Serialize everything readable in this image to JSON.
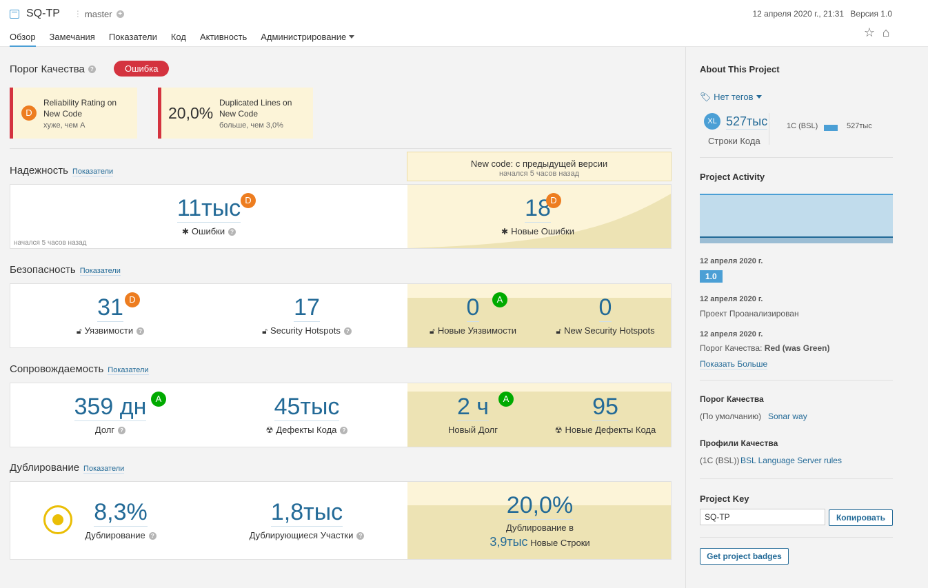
{
  "header": {
    "project_name": "SQ-TP",
    "branch": "master",
    "date": "12 апреля 2020 г., 21:31",
    "version": "Версия 1.0",
    "nav": [
      "Обзор",
      "Замечания",
      "Показатели",
      "Код",
      "Активность",
      "Администрирование"
    ]
  },
  "quality_gate": {
    "title": "Порог Качества",
    "status": "Ошибка",
    "conditions": [
      {
        "rating": "D",
        "label": "Reliability Rating on New Code",
        "detail": "хуже, чем A"
      },
      {
        "value": "20,0%",
        "label": "Duplicated Lines on New Code",
        "detail": "больше, чем 3,0%"
      }
    ]
  },
  "new_code": {
    "title": "New code: с предыдущей версии",
    "subtitle": "начался 5 часов назад"
  },
  "metrics_link": "Показатели",
  "reliability": {
    "title": "Надежность",
    "bugs": "11тыс",
    "bugs_rating": "D",
    "bugs_label": "Ошибки",
    "footer": "начался 5 часов назад",
    "new_bugs": "18",
    "new_bugs_rating": "D",
    "new_bugs_label": "Новые Ошибки"
  },
  "security": {
    "title": "Безопасность",
    "vuln": "31",
    "vuln_rating": "D",
    "vuln_label": "Уязвимости",
    "hotspots": "17",
    "hotspots_label": "Security Hotspots",
    "new_vuln": "0",
    "new_vuln_rating": "A",
    "new_vuln_label": "Новые Уязвимости",
    "new_hotspots": "0",
    "new_hotspots_label": "New Security Hotspots"
  },
  "maintainability": {
    "title": "Сопровождаемость",
    "debt": "359 дн",
    "debt_rating": "A",
    "debt_label": "Долг",
    "smells": "45тыс",
    "smells_label": "Дефекты Кода",
    "new_debt": "2 ч",
    "new_debt_rating": "A",
    "new_debt_label": "Новый Долг",
    "new_smells": "95",
    "new_smells_label": "Новые Дефекты Кода"
  },
  "duplication": {
    "title": "Дублирование",
    "dup": "8,3%",
    "dup_label": "Дублирование",
    "blocks": "1,8тыс",
    "blocks_label": "Дублирующиеся Участки",
    "new_dup": "20,0%",
    "new_dup_label": "Дублирование в",
    "new_lines": "3,9тыс",
    "new_lines_label": "Новые Строки"
  },
  "sidebar": {
    "about": "About This Project",
    "tags": "Нет тегов",
    "size": "XL",
    "loc": "527тыс",
    "loc_label": "Строки Кода",
    "lang": "1C (BSL)",
    "lang_loc": "527тыс",
    "activity_title": "Project Activity",
    "events": [
      {
        "date": "12 апреля 2020 г.",
        "version": "1.0"
      },
      {
        "date": "12 апреля 2020 г.",
        "text": "Проект Проанализирован"
      },
      {
        "date": "12 апреля 2020 г.",
        "text": "Порог Качества:",
        "bold": "Red (was Green)"
      }
    ],
    "show_more": "Показать Больше",
    "qg_title": "Порог Качества",
    "qg_default": "(По умолчанию)",
    "qg_name": "Sonar way",
    "profiles_title": "Профили Качества",
    "profile_lang": "(1C (BSL))",
    "profile_name": "BSL Language Server rules",
    "key_title": "Project Key",
    "key": "SQ-TP",
    "copy": "Копировать",
    "badges": "Get project badges"
  }
}
